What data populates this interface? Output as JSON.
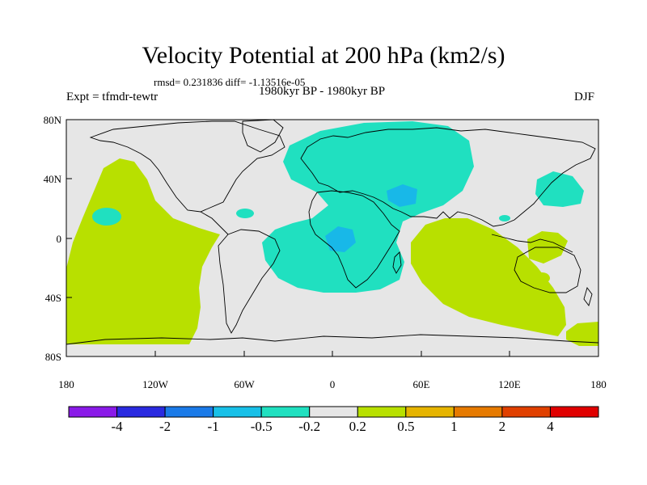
{
  "title": "Velocity Potential at 200 hPa (km2/s)",
  "stats": "rmsd= 0.231836 diff= -1.13516e-05",
  "experiment": "Expt = tfmdr-tewtr",
  "period": "1980kyr BP - 1980kyr BP",
  "season": "DJF",
  "y_ticks": [
    "80N",
    "40N",
    "0",
    "40S",
    "80S"
  ],
  "x_ticks": [
    "180",
    "120W",
    "60W",
    "0",
    "60E",
    "120E",
    "180"
  ],
  "colorbar": {
    "labels": [
      "-4",
      "-2",
      "-1",
      "-0.5",
      "-0.2",
      "0.2",
      "0.5",
      "1",
      "2",
      "4"
    ],
    "colors": [
      "#8a1ae8",
      "#2a2ae0",
      "#1a7ae8",
      "#18c0e8",
      "#20e0c0",
      "#e6e6e6",
      "#b8e000",
      "#e6b400",
      "#e67a00",
      "#e04000",
      "#e00000"
    ]
  },
  "fills": {
    "background": "#e6e6e6",
    "negative_light": "#20e0c0",
    "negative_mid": "#18b8e8",
    "positive": "#b8e000"
  }
}
